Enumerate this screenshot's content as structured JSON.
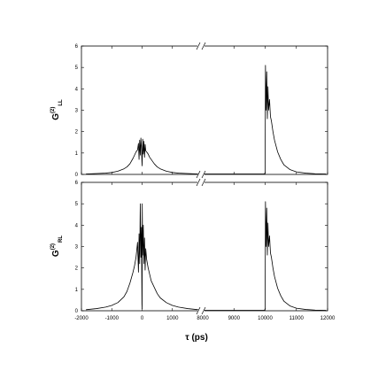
{
  "figure": {
    "xlabel": "τ (ps)"
  },
  "chart_data": [
    {
      "type": "line",
      "panel": "top",
      "ylabel_main": "G",
      "ylabel_sup": "(2)",
      "ylabel_sub": "LL",
      "ylim": [
        0,
        6
      ],
      "yticks": [
        0,
        1,
        2,
        3,
        4,
        5,
        6
      ],
      "xlim_segments": [
        [
          -2000,
          2000
        ],
        [
          8000,
          12000
        ]
      ],
      "xbreak_between": [
        2000,
        8000
      ],
      "series": [
        {
          "x": [
            -1850,
            -1500,
            -1200,
            -1000,
            -800,
            -600,
            -500,
            -400,
            -300,
            -250,
            -200,
            -150,
            -120,
            -100,
            -80,
            -60,
            -40,
            -20,
            0,
            20,
            40,
            60,
            80,
            100,
            120,
            150,
            200,
            250,
            300,
            400,
            500,
            600,
            800,
            1000,
            1200,
            1500,
            1850
          ],
          "y": [
            0.02,
            0.04,
            0.06,
            0.09,
            0.15,
            0.26,
            0.35,
            0.5,
            0.75,
            0.9,
            1.05,
            1.15,
            1.45,
            0.7,
            1.6,
            0.9,
            1.7,
            1.2,
            0.4,
            1.65,
            0.95,
            1.55,
            0.8,
            1.4,
            1.1,
            1.05,
            0.95,
            0.8,
            0.7,
            0.5,
            0.35,
            0.26,
            0.15,
            0.09,
            0.06,
            0.04,
            0.02
          ]
        },
        {
          "x": [
            8050,
            9000,
            9900,
            9980,
            10000,
            10010,
            10030,
            10050,
            10070,
            10090,
            10110,
            10140,
            10170,
            10200,
            10250,
            10300,
            10400,
            10500,
            10600,
            10800,
            11000,
            11300,
            11600,
            11950
          ],
          "y": [
            0.02,
            0.02,
            0.02,
            0.02,
            0.1,
            5.1,
            3.0,
            4.8,
            2.6,
            4.1,
            3.0,
            3.5,
            2.7,
            2.5,
            2.0,
            1.6,
            1.05,
            0.7,
            0.45,
            0.22,
            0.12,
            0.06,
            0.03,
            0.02
          ]
        }
      ]
    },
    {
      "type": "line",
      "panel": "bottom",
      "ylabel_main": "G",
      "ylabel_sup": "(2)",
      "ylabel_sub": "RL",
      "ylim": [
        0,
        6
      ],
      "yticks": [
        0,
        1,
        2,
        3,
        4,
        5,
        6
      ],
      "xlim_segments": [
        [
          -2000,
          2000
        ],
        [
          8000,
          12000
        ]
      ],
      "xbreak_between": [
        2000,
        8000
      ],
      "xticks_left": [
        -2000,
        -1000,
        0,
        1000
      ],
      "xtick_labels_left": [
        "-2000",
        "-1000",
        "0",
        "1000"
      ],
      "xticks_right": [
        8000,
        9000,
        10000,
        11000,
        12000
      ],
      "xtick_labels_right": [
        "8000",
        "9000",
        "10000",
        "11000",
        "12000"
      ],
      "series": [
        {
          "x": [
            -1850,
            -1500,
            -1200,
            -1000,
            -800,
            -600,
            -500,
            -400,
            -300,
            -250,
            -200,
            -150,
            -120,
            -100,
            -80,
            -60,
            -40,
            -20,
            -5,
            0,
            5,
            20,
            40,
            60,
            80,
            100,
            120,
            150,
            200,
            250,
            300,
            400,
            500,
            600,
            800,
            1000,
            1200,
            1500,
            1850
          ],
          "y": [
            0.05,
            0.1,
            0.17,
            0.25,
            0.38,
            0.65,
            0.9,
            1.3,
            1.8,
            2.1,
            2.5,
            3.2,
            1.8,
            3.6,
            2.2,
            5.0,
            2.5,
            3.9,
            0.3,
            0.1,
            5.0,
            2.6,
            4.0,
            2.2,
            3.4,
            1.9,
            2.9,
            2.4,
            2.0,
            1.7,
            1.4,
            1.1,
            0.8,
            0.6,
            0.38,
            0.25,
            0.17,
            0.1,
            0.05
          ]
        },
        {
          "x": [
            8050,
            9000,
            9900,
            9980,
            10000,
            10010,
            10030,
            10050,
            10070,
            10090,
            10110,
            10140,
            10170,
            10200,
            10250,
            10300,
            10400,
            10500,
            10600,
            10800,
            11000,
            11300,
            11600,
            11950
          ],
          "y": [
            0.02,
            0.02,
            0.02,
            0.02,
            0.1,
            5.1,
            3.0,
            4.8,
            2.6,
            4.1,
            3.0,
            3.5,
            2.7,
            2.5,
            2.0,
            1.6,
            1.05,
            0.7,
            0.45,
            0.22,
            0.12,
            0.06,
            0.03,
            0.02
          ]
        }
      ]
    }
  ]
}
